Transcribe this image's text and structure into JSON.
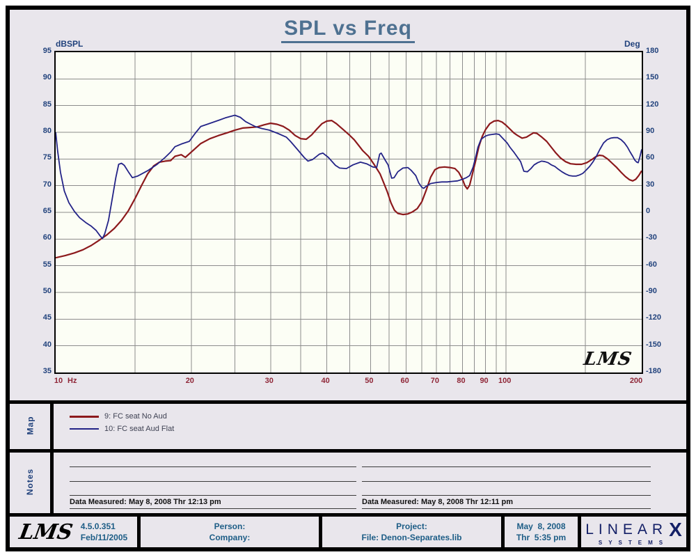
{
  "title": "SPL vs Freq",
  "watermark": "LMS",
  "axes": {
    "left_label": "dBSPL",
    "right_label": "Deg",
    "x_unit": "Hz",
    "left_ticks": [
      95,
      90,
      85,
      80,
      75,
      70,
      65,
      60,
      55,
      50,
      45,
      40,
      35
    ],
    "right_ticks": [
      180,
      150,
      120,
      90,
      60,
      30,
      0,
      -30,
      -60,
      -90,
      -120,
      -150,
      -180
    ],
    "x_ticks": [
      10,
      20,
      30,
      40,
      50,
      60,
      70,
      80,
      90,
      100,
      200
    ]
  },
  "chart_data": {
    "type": "line",
    "title": "SPL vs Freq",
    "x_scale": "log",
    "x_range": [
      10,
      200
    ],
    "xlabel": "Hz",
    "ylabel_left": "dBSPL",
    "ylabel_right": "Deg",
    "y_left_range": [
      35,
      95
    ],
    "y_left_step": 5,
    "y_right_range": [
      -180,
      180
    ],
    "y_right_step": 30,
    "grid": true,
    "x_gridlines": [
      15,
      20,
      25,
      30,
      35,
      40,
      45,
      50,
      55,
      60,
      65,
      70,
      75,
      80,
      85,
      90,
      95,
      100,
      150
    ],
    "grid_color": "#8c8c8c",
    "plot_bg": "#fcfef5",
    "series": [
      {
        "name": "9: FC seat No Aud",
        "color": "#8c191c",
        "width": 2.2,
        "points": [
          [
            10,
            56.5
          ],
          [
            10.5,
            56.9
          ],
          [
            11,
            57.4
          ],
          [
            11.5,
            58.0
          ],
          [
            12,
            58.8
          ],
          [
            12.5,
            59.8
          ],
          [
            13,
            60.8
          ],
          [
            13.5,
            62.0
          ],
          [
            14,
            63.5
          ],
          [
            14.5,
            65.3
          ],
          [
            15,
            67.6
          ],
          [
            15.5,
            70.0
          ],
          [
            16,
            72.2
          ],
          [
            16.5,
            73.7
          ],
          [
            17,
            74.4
          ],
          [
            17.5,
            74.6
          ],
          [
            18,
            74.7
          ],
          [
            18.4,
            75.5
          ],
          [
            19,
            75.8
          ],
          [
            19.4,
            75.3
          ],
          [
            20,
            76.3
          ],
          [
            21,
            77.9
          ],
          [
            22,
            78.8
          ],
          [
            23,
            79.4
          ],
          [
            24,
            79.9
          ],
          [
            25,
            80.4
          ],
          [
            26,
            80.8
          ],
          [
            27,
            80.9
          ],
          [
            28,
            81.0
          ],
          [
            29,
            81.4
          ],
          [
            30,
            81.7
          ],
          [
            31,
            81.5
          ],
          [
            32,
            81.1
          ],
          [
            33,
            80.4
          ],
          [
            34,
            79.4
          ],
          [
            35,
            78.8
          ],
          [
            36,
            78.7
          ],
          [
            37,
            79.5
          ],
          [
            38,
            80.6
          ],
          [
            39,
            81.6
          ],
          [
            40,
            82.1
          ],
          [
            41,
            82.2
          ],
          [
            42,
            81.6
          ],
          [
            43.5,
            80.5
          ],
          [
            45,
            79.4
          ],
          [
            46,
            78.6
          ],
          [
            47,
            77.6
          ],
          [
            48,
            76.6
          ],
          [
            49.5,
            75.5
          ],
          [
            51,
            73.9
          ],
          [
            52.5,
            72.2
          ],
          [
            53.5,
            70.5
          ],
          [
            54.5,
            68.8
          ],
          [
            55.5,
            66.8
          ],
          [
            56.5,
            65.4
          ],
          [
            57.5,
            64.8
          ],
          [
            59,
            64.6
          ],
          [
            60.5,
            64.7
          ],
          [
            62,
            65.1
          ],
          [
            63.5,
            65.7
          ],
          [
            65,
            67.0
          ],
          [
            66.5,
            69.2
          ],
          [
            68,
            71.6
          ],
          [
            69.5,
            73.0
          ],
          [
            71,
            73.4
          ],
          [
            73,
            73.5
          ],
          [
            75,
            73.4
          ],
          [
            77,
            73.2
          ],
          [
            78.5,
            72.5
          ],
          [
            80,
            71.2
          ],
          [
            81,
            70.0
          ],
          [
            82,
            69.4
          ],
          [
            83,
            70.1
          ],
          [
            84,
            71.9
          ],
          [
            85.5,
            74.5
          ],
          [
            87,
            77.3
          ],
          [
            88.5,
            79.2
          ],
          [
            90,
            80.5
          ],
          [
            92,
            81.6
          ],
          [
            94,
            82.1
          ],
          [
            96,
            82.2
          ],
          [
            98,
            81.9
          ],
          [
            100,
            81.3
          ],
          [
            102,
            80.6
          ],
          [
            104,
            79.9
          ],
          [
            106,
            79.4
          ],
          [
            108.5,
            78.9
          ],
          [
            111,
            79.1
          ],
          [
            113,
            79.5
          ],
          [
            115,
            79.9
          ],
          [
            117,
            79.8
          ],
          [
            120,
            79.1
          ],
          [
            123,
            78.3
          ],
          [
            126,
            77.2
          ],
          [
            129,
            76.1
          ],
          [
            132,
            75.2
          ],
          [
            135.5,
            74.5
          ],
          [
            139,
            74.1
          ],
          [
            143,
            74.0
          ],
          [
            147,
            74.0
          ],
          [
            151,
            74.3
          ],
          [
            155,
            74.9
          ],
          [
            158,
            75.4
          ],
          [
            161,
            75.7
          ],
          [
            164,
            75.6
          ],
          [
            168,
            75.0
          ],
          [
            172,
            74.2
          ],
          [
            176,
            73.4
          ],
          [
            180,
            72.5
          ],
          [
            184,
            71.7
          ],
          [
            188,
            71.1
          ],
          [
            191,
            70.9
          ],
          [
            194,
            71.2
          ],
          [
            197,
            71.9
          ],
          [
            200,
            72.8
          ]
        ]
      },
      {
        "name": "10: FC seat Aud Flat",
        "color": "#232387",
        "width": 1.8,
        "points": [
          [
            10,
            80.0
          ],
          [
            10.1,
            76.5
          ],
          [
            10.25,
            72.5
          ],
          [
            10.45,
            69.0
          ],
          [
            10.7,
            66.8
          ],
          [
            11,
            65.2
          ],
          [
            11.3,
            64.0
          ],
          [
            11.7,
            63.0
          ],
          [
            12,
            62.4
          ],
          [
            12.3,
            61.6
          ],
          [
            12.55,
            60.6
          ],
          [
            12.7,
            60.1
          ],
          [
            12.85,
            61.0
          ],
          [
            13.1,
            63.5
          ],
          [
            13.35,
            67.5
          ],
          [
            13.6,
            71.5
          ],
          [
            13.8,
            74.0
          ],
          [
            14,
            74.2
          ],
          [
            14.2,
            73.8
          ],
          [
            14.5,
            72.6
          ],
          [
            14.8,
            71.5
          ],
          [
            15.2,
            71.8
          ],
          [
            16,
            72.8
          ],
          [
            16.8,
            74.0
          ],
          [
            17.5,
            75.3
          ],
          [
            18,
            76.3
          ],
          [
            18.4,
            77.3
          ],
          [
            19,
            77.8
          ],
          [
            19.8,
            78.3
          ],
          [
            20.4,
            79.8
          ],
          [
            21,
            81.1
          ],
          [
            21.7,
            81.5
          ],
          [
            22.4,
            81.9
          ],
          [
            23.1,
            82.3
          ],
          [
            23.8,
            82.7
          ],
          [
            24.5,
            83.0
          ],
          [
            25,
            83.2
          ],
          [
            25.7,
            82.8
          ],
          [
            26.4,
            82.0
          ],
          [
            27.1,
            81.5
          ],
          [
            27.7,
            81.1
          ],
          [
            28.7,
            80.7
          ],
          [
            29.8,
            80.4
          ],
          [
            31.1,
            79.8
          ],
          [
            32.5,
            79.1
          ],
          [
            33.2,
            78.3
          ],
          [
            34.4,
            76.8
          ],
          [
            35.6,
            75.3
          ],
          [
            36.3,
            74.6
          ],
          [
            37.2,
            74.9
          ],
          [
            38.5,
            75.9
          ],
          [
            39.2,
            76.1
          ],
          [
            40.3,
            75.3
          ],
          [
            41.8,
            73.8
          ],
          [
            42.7,
            73.3
          ],
          [
            44.2,
            73.2
          ],
          [
            45.7,
            73.9
          ],
          [
            47.5,
            74.4
          ],
          [
            49,
            74.1
          ],
          [
            50.6,
            73.5
          ],
          [
            51.6,
            73.4
          ],
          [
            52.4,
            75.9
          ],
          [
            52.8,
            76.1
          ],
          [
            53.8,
            74.9
          ],
          [
            54.7,
            73.9
          ],
          [
            55.7,
            71.4
          ],
          [
            56.4,
            71.5
          ],
          [
            57.5,
            72.6
          ],
          [
            59,
            73.3
          ],
          [
            60.5,
            73.4
          ],
          [
            61.5,
            72.9
          ],
          [
            63,
            71.9
          ],
          [
            64,
            70.5
          ],
          [
            65,
            69.7
          ],
          [
            65.6,
            69.5
          ],
          [
            66.5,
            69.9
          ],
          [
            68,
            70.4
          ],
          [
            70,
            70.6
          ],
          [
            72,
            70.7
          ],
          [
            74,
            70.7
          ],
          [
            76,
            70.8
          ],
          [
            78,
            70.9
          ],
          [
            80,
            71.2
          ],
          [
            81.6,
            71.5
          ],
          [
            83,
            71.9
          ],
          [
            84.5,
            73.5
          ],
          [
            85.5,
            75.2
          ],
          [
            86.6,
            77.2
          ],
          [
            88,
            78.7
          ],
          [
            90,
            79.3
          ],
          [
            91.5,
            79.5
          ],
          [
            93,
            79.6
          ],
          [
            95,
            79.7
          ],
          [
            96.5,
            79.6
          ],
          [
            98,
            79.0
          ],
          [
            100.5,
            78.0
          ],
          [
            102,
            77.2
          ],
          [
            104,
            76.3
          ],
          [
            106,
            75.3
          ],
          [
            107.7,
            74.5
          ],
          [
            109.5,
            72.7
          ],
          [
            111.5,
            72.6
          ],
          [
            113.5,
            73.2
          ],
          [
            115.4,
            73.9
          ],
          [
            117.5,
            74.3
          ],
          [
            119.8,
            74.6
          ],
          [
            122,
            74.5
          ],
          [
            124,
            74.3
          ],
          [
            126,
            73.9
          ],
          [
            128.3,
            73.6
          ],
          [
            130.5,
            73.1
          ],
          [
            133,
            72.6
          ],
          [
            135.5,
            72.2
          ],
          [
            138,
            71.9
          ],
          [
            140.5,
            71.8
          ],
          [
            143,
            71.8
          ],
          [
            145.5,
            72.0
          ],
          [
            148,
            72.3
          ],
          [
            150.5,
            72.9
          ],
          [
            153.2,
            73.6
          ],
          [
            156,
            74.5
          ],
          [
            158.8,
            75.6
          ],
          [
            161.5,
            76.8
          ],
          [
            164.6,
            78.0
          ],
          [
            167.5,
            78.6
          ],
          [
            170.6,
            78.9
          ],
          [
            173.5,
            79.0
          ],
          [
            176.8,
            79.0
          ],
          [
            180,
            78.6
          ],
          [
            183.1,
            78.0
          ],
          [
            186,
            77.2
          ],
          [
            188.5,
            76.3
          ],
          [
            191,
            75.5
          ],
          [
            193,
            74.8
          ],
          [
            195,
            74.4
          ],
          [
            196.4,
            74.3
          ],
          [
            198,
            75.3
          ],
          [
            200,
            76.8
          ]
        ]
      }
    ]
  },
  "legend": {
    "map_label": "Map",
    "entries": [
      {
        "label": "9: FC seat No Aud",
        "color": "#8c191c"
      },
      {
        "label": "10: FC seat Aud Flat",
        "color": "#232387"
      }
    ]
  },
  "notes": {
    "label": "Notes",
    "left_measured": "Data Measured: May 8, 2008  Thr 12:13 pm",
    "right_measured": "Data Measured: May 8, 2008  Thr 12:11 pm"
  },
  "footer": {
    "logo": "LMS",
    "version": "4.5.0.351",
    "version_date": "Feb/11/2005",
    "person_label": "Person:",
    "company_label": "Company:",
    "project_label": "Project:",
    "file_label": "File: Denon-Separates.lib",
    "date": "May  8, 2008",
    "time": "Thr  5:35 pm",
    "brand_letters": "LINEAR",
    "brand_x": "X",
    "brand_sub": "SYSTEMS"
  }
}
